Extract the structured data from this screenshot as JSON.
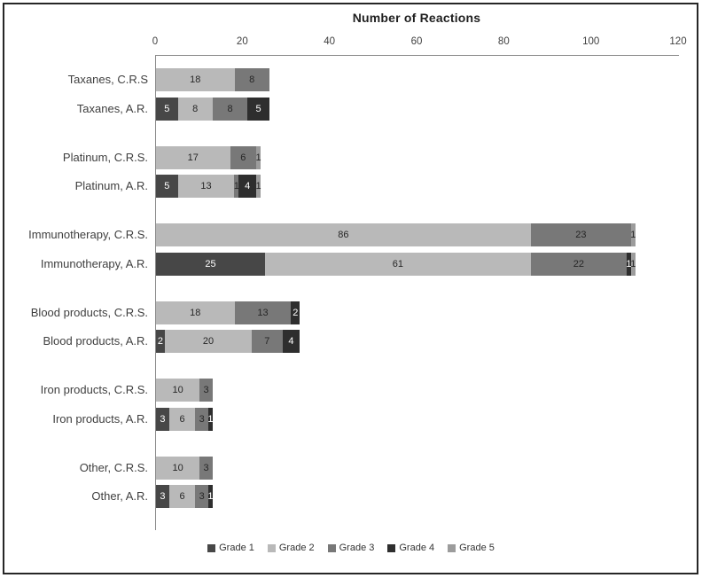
{
  "chart_data": {
    "type": "bar",
    "orientation": "horizontal-stacked",
    "title": "Number of Reactions",
    "x_axis": {
      "min": 0,
      "max": 120,
      "ticks": [
        0,
        20,
        40,
        60,
        80,
        100,
        120
      ],
      "position": "top",
      "grid": false
    },
    "legend_position": "bottom",
    "series": [
      {
        "name": "Grade 1",
        "color": "#474747",
        "label_color": "#ffffff"
      },
      {
        "name": "Grade 2",
        "color": "#b9b9b9",
        "label_color": "#262626"
      },
      {
        "name": "Grade 3",
        "color": "#787878",
        "label_color": "#262626"
      },
      {
        "name": "Grade 4",
        "color": "#2e2e2e",
        "label_color": "#ffffff"
      },
      {
        "name": "Grade 5",
        "color": "#9c9c9c",
        "label_color": "#262626"
      }
    ],
    "groups": [
      {
        "rows": [
          {
            "label": "Taxanes, C.R.S",
            "segments": [
              {
                "series": "Grade 2",
                "value": 18
              },
              {
                "series": "Grade 3",
                "value": 8
              }
            ]
          },
          {
            "label": "Taxanes, A.R.",
            "segments": [
              {
                "series": "Grade 1",
                "value": 5
              },
              {
                "series": "Grade 2",
                "value": 8
              },
              {
                "series": "Grade 3",
                "value": 8
              },
              {
                "series": "Grade 4",
                "value": 5
              }
            ]
          }
        ]
      },
      {
        "rows": [
          {
            "label": "Platinum, C.R.S.",
            "segments": [
              {
                "series": "Grade 2",
                "value": 17
              },
              {
                "series": "Grade 3",
                "value": 6
              },
              {
                "series": "Grade 5",
                "value": 1
              }
            ]
          },
          {
            "label": "Platinum, A.R.",
            "segments": [
              {
                "series": "Grade 1",
                "value": 5
              },
              {
                "series": "Grade 2",
                "value": 13
              },
              {
                "series": "Grade 3",
                "value": 1
              },
              {
                "series": "Grade 4",
                "value": 4
              },
              {
                "series": "Grade 5",
                "value": 1
              }
            ]
          }
        ]
      },
      {
        "rows": [
          {
            "label": "Immunotherapy, C.R.S.",
            "segments": [
              {
                "series": "Grade 2",
                "value": 86
              },
              {
                "series": "Grade 3",
                "value": 23
              },
              {
                "series": "Grade 5",
                "value": 1
              }
            ]
          },
          {
            "label": "Immunotherapy, A.R.",
            "segments": [
              {
                "series": "Grade 1",
                "value": 25
              },
              {
                "series": "Grade 2",
                "value": 61
              },
              {
                "series": "Grade 3",
                "value": 22
              },
              {
                "series": "Grade 4",
                "value": 1
              },
              {
                "series": "Grade 5",
                "value": 1
              }
            ]
          }
        ]
      },
      {
        "rows": [
          {
            "label": "Blood products, C.R.S.",
            "segments": [
              {
                "series": "Grade 2",
                "value": 18
              },
              {
                "series": "Grade 3",
                "value": 13
              },
              {
                "series": "Grade 4",
                "value": 2
              }
            ]
          },
          {
            "label": "Blood products, A.R.",
            "segments": [
              {
                "series": "Grade 1",
                "value": 2
              },
              {
                "series": "Grade 2",
                "value": 20
              },
              {
                "series": "Grade 3",
                "value": 7
              },
              {
                "series": "Grade 4",
                "value": 4
              }
            ]
          }
        ]
      },
      {
        "rows": [
          {
            "label": "Iron products, C.R.S.",
            "segments": [
              {
                "series": "Grade 2",
                "value": 10
              },
              {
                "series": "Grade 3",
                "value": 3
              }
            ]
          },
          {
            "label": "Iron products, A.R.",
            "segments": [
              {
                "series": "Grade 1",
                "value": 3
              },
              {
                "series": "Grade 2",
                "value": 6
              },
              {
                "series": "Grade 3",
                "value": 3
              },
              {
                "series": "Grade 4",
                "value": 1
              }
            ]
          }
        ]
      },
      {
        "rows": [
          {
            "label": "Other, C.R.S.",
            "segments": [
              {
                "series": "Grade 2",
                "value": 10
              },
              {
                "series": "Grade 3",
                "value": 3
              }
            ]
          },
          {
            "label": "Other, A.R.",
            "segments": [
              {
                "series": "Grade 1",
                "value": 3
              },
              {
                "series": "Grade 2",
                "value": 6
              },
              {
                "series": "Grade 3",
                "value": 3
              },
              {
                "series": "Grade 4",
                "value": 1
              }
            ]
          }
        ]
      }
    ]
  }
}
